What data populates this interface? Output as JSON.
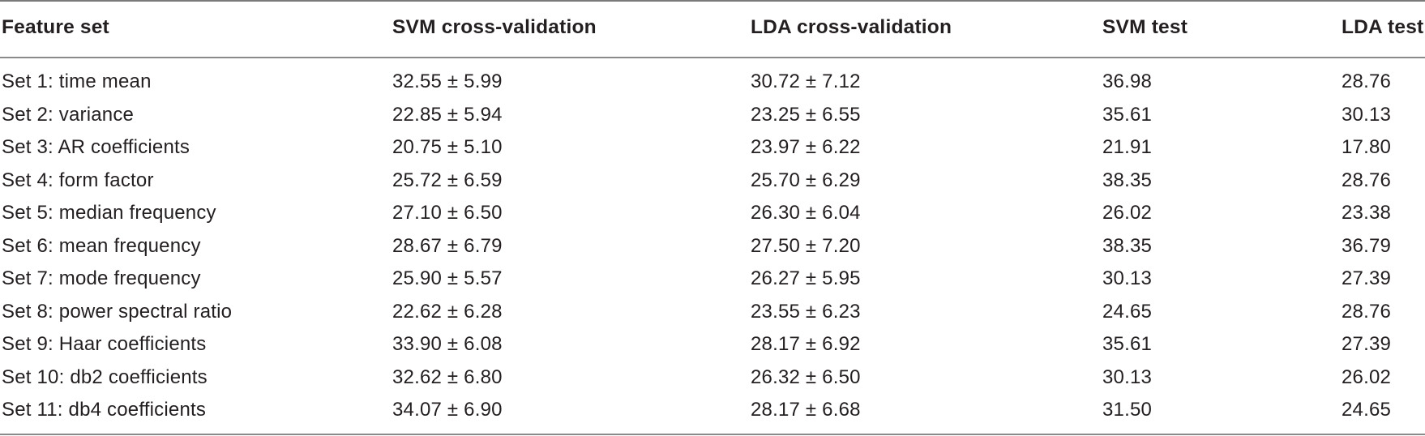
{
  "table": {
    "headers": [
      "Feature set",
      "SVM cross-validation",
      "LDA cross-validation",
      "SVM test",
      "LDA test"
    ],
    "rows": [
      [
        "Set 1: time mean",
        "32.55 ± 5.99",
        "30.72 ± 7.12",
        "36.98",
        "28.76"
      ],
      [
        "Set 2: variance",
        "22.85 ± 5.94",
        "23.25 ± 6.55",
        "35.61",
        "30.13"
      ],
      [
        "Set 3: AR coefficients",
        "20.75 ± 5.10",
        "23.97 ± 6.22",
        "21.91",
        "17.80"
      ],
      [
        "Set 4: form factor",
        "25.72 ± 6.59",
        "25.70 ± 6.29",
        "38.35",
        "28.76"
      ],
      [
        "Set 5: median frequency",
        "27.10 ± 6.50",
        "26.30 ± 6.04",
        "26.02",
        "23.38"
      ],
      [
        "Set 6: mean frequency",
        "28.67 ± 6.79",
        "27.50 ± 7.20",
        "38.35",
        "36.79"
      ],
      [
        "Set 7: mode frequency",
        "25.90 ± 5.57",
        "26.27 ± 5.95",
        "30.13",
        "27.39"
      ],
      [
        "Set 8: power spectral ratio",
        "22.62 ± 6.28",
        "23.55 ± 6.23",
        "24.65",
        "28.76"
      ],
      [
        "Set 9: Haar coefficients",
        "33.90 ± 6.08",
        "28.17 ± 6.92",
        "35.61",
        "27.39"
      ],
      [
        "Set 10: db2 coefficients",
        "32.62 ± 6.80",
        "26.32 ± 6.50",
        "30.13",
        "26.02"
      ],
      [
        "Set 11: db4 coefficients",
        "34.07 ± 6.90",
        "28.17 ± 6.68",
        "31.50",
        "24.65"
      ]
    ]
  }
}
